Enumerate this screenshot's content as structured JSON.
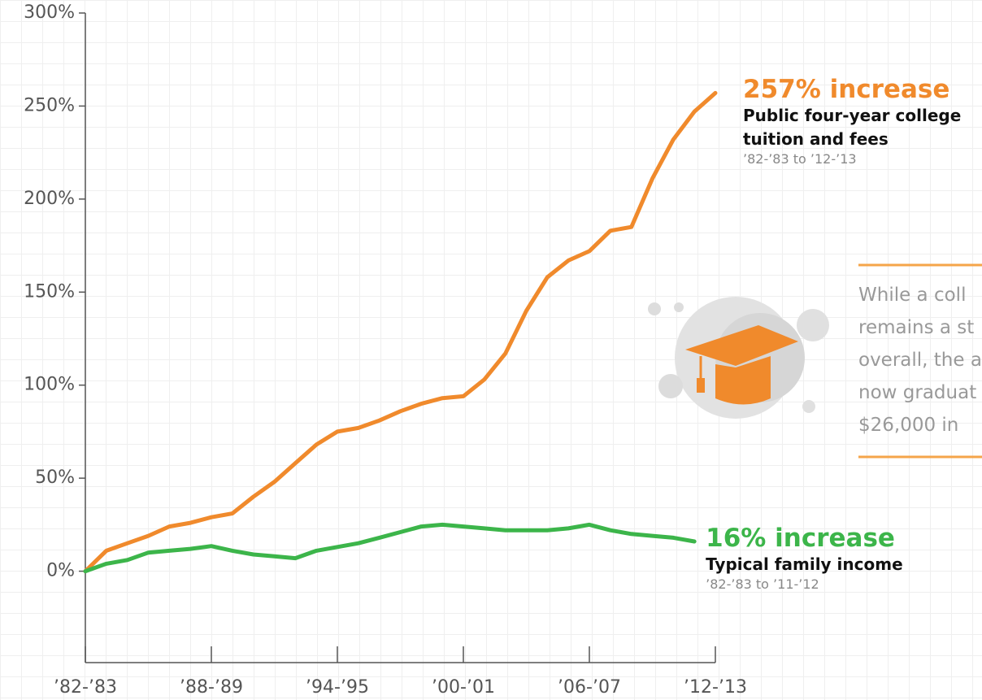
{
  "chart_data": {
    "type": "line",
    "categories": [
      "’82-’83",
      null,
      null,
      null,
      null,
      null,
      "’88-’89",
      null,
      null,
      null,
      null,
      null,
      "’94-’95",
      null,
      null,
      null,
      null,
      null,
      "’00-’01",
      null,
      null,
      null,
      null,
      null,
      "’06-’07",
      null,
      null,
      null,
      null,
      null,
      "’12-’13"
    ],
    "ylim": [
      -50,
      300
    ],
    "yticks": [
      {
        "value": 0,
        "label": "0%"
      },
      {
        "value": 50,
        "label": "50%"
      },
      {
        "value": 100,
        "label": "100%"
      },
      {
        "value": 150,
        "label": "150%"
      },
      {
        "value": 200,
        "label": "200%"
      },
      {
        "value": 250,
        "label": "250%"
      },
      {
        "value": 300,
        "label": "300%"
      }
    ],
    "grid": false,
    "series": [
      {
        "name": "Public four-year college tuition and fees",
        "color": "#f08a2c",
        "change_label": "257% increase",
        "period": "’82-’83 to ’12-’13",
        "values": [
          0,
          11,
          15,
          19,
          24,
          26,
          29,
          31,
          40,
          48,
          58,
          68,
          75,
          77,
          81,
          86,
          90,
          93,
          94,
          103,
          117,
          140,
          158,
          167,
          172,
          183,
          185,
          211,
          232,
          247,
          257
        ]
      },
      {
        "name": "Typical family income",
        "color": "#3cb54a",
        "change_label": "16% increase",
        "period": "’82-’83 to ’11-’12",
        "values": [
          0,
          4,
          6,
          10,
          11,
          12,
          13.5,
          11,
          9,
          8,
          7,
          11,
          13,
          15,
          18,
          21,
          24,
          25,
          24,
          23,
          22,
          22,
          22,
          23,
          25,
          22,
          20,
          19,
          18,
          16,
          null
        ]
      }
    ],
    "sidebar_lines": [
      "While a coll",
      "remains a st",
      "overall, the a",
      "now graduat",
      "$26,000 in"
    ]
  }
}
